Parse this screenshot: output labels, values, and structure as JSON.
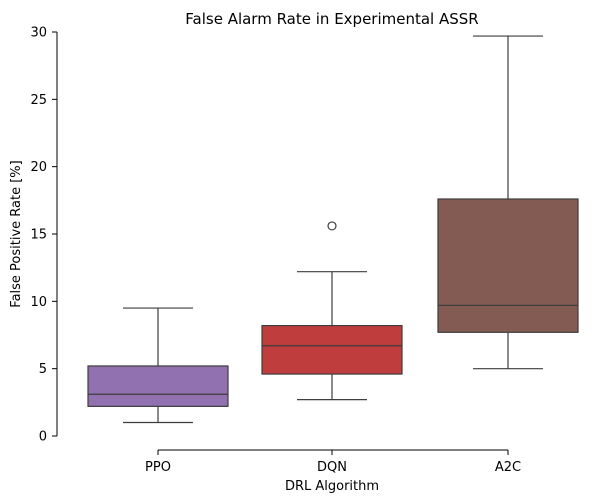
{
  "chart_data": {
    "type": "box",
    "title": "False Alarm Rate in Experimental ASSR",
    "xlabel": "DRL Algorithm",
    "ylabel": "False Positive Rate [%]",
    "categories": [
      "PPO",
      "DQN",
      "A2C"
    ],
    "ylim": [
      0,
      30
    ],
    "yticks": [
      0,
      5,
      10,
      15,
      20,
      25,
      30
    ],
    "grid": false,
    "boxes": [
      {
        "label": "PPO",
        "whisker_low": 1.0,
        "q1": 2.2,
        "median": 3.1,
        "q3": 5.2,
        "whisker_high": 9.5,
        "outliers": [],
        "color": "#9271b1"
      },
      {
        "label": "DQN",
        "whisker_low": 2.7,
        "q1": 4.6,
        "median": 6.7,
        "q3": 8.2,
        "whisker_high": 12.2,
        "outliers": [
          15.6
        ],
        "color": "#c03d3e"
      },
      {
        "label": "A2C",
        "whisker_low": 5.0,
        "q1": 7.7,
        "median": 9.7,
        "q3": 17.6,
        "whisker_high": 29.7,
        "outliers": [],
        "color": "#845b53"
      }
    ]
  }
}
